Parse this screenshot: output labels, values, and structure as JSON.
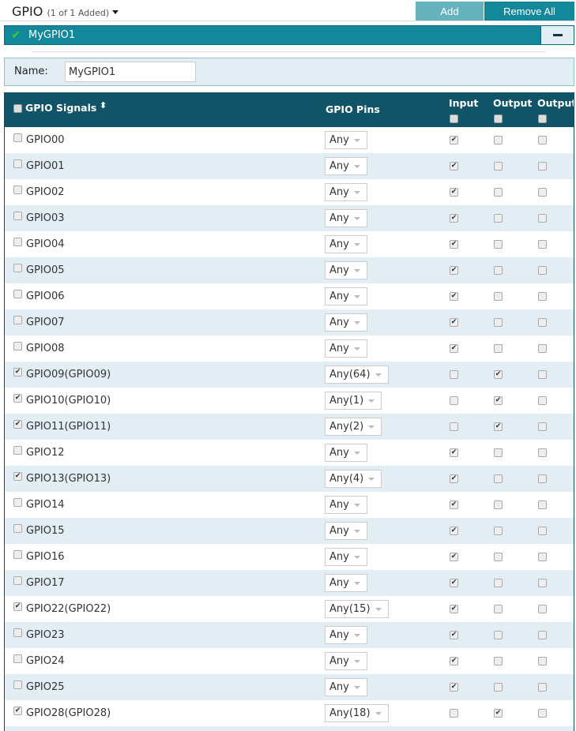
{
  "header": {
    "title": "GPIO",
    "count": "(1 of 1 Added)",
    "add_label": "Add",
    "remove_all_label": "Remove All"
  },
  "instance": {
    "name": "MyGPIO1",
    "collapse_icon": "minus-icon",
    "status_icon": "check-icon",
    "status_color": "#33cc33"
  },
  "name_field": {
    "label": "Name:",
    "value": "MyGPIO1"
  },
  "table": {
    "columns": {
      "signals": "GPIO Signals",
      "pins": "GPIO Pins",
      "input": "Input",
      "output1": "Output",
      "output2": "Output"
    },
    "rows": [
      {
        "signal": "GPIO00",
        "selected": false,
        "pin": "Any",
        "input": true,
        "output1": false,
        "output2": false
      },
      {
        "signal": "GPIO01",
        "selected": false,
        "pin": "Any",
        "input": true,
        "output1": false,
        "output2": false
      },
      {
        "signal": "GPIO02",
        "selected": false,
        "pin": "Any",
        "input": true,
        "output1": false,
        "output2": false
      },
      {
        "signal": "GPIO03",
        "selected": false,
        "pin": "Any",
        "input": true,
        "output1": false,
        "output2": false
      },
      {
        "signal": "GPIO04",
        "selected": false,
        "pin": "Any",
        "input": true,
        "output1": false,
        "output2": false
      },
      {
        "signal": "GPIO05",
        "selected": false,
        "pin": "Any",
        "input": true,
        "output1": false,
        "output2": false
      },
      {
        "signal": "GPIO06",
        "selected": false,
        "pin": "Any",
        "input": true,
        "output1": false,
        "output2": false
      },
      {
        "signal": "GPIO07",
        "selected": false,
        "pin": "Any",
        "input": true,
        "output1": false,
        "output2": false
      },
      {
        "signal": "GPIO08",
        "selected": false,
        "pin": "Any",
        "input": true,
        "output1": false,
        "output2": false
      },
      {
        "signal": "GPIO09(GPIO09)",
        "selected": true,
        "pin": "Any(64)",
        "input": false,
        "output1": true,
        "output2": false
      },
      {
        "signal": "GPIO10(GPIO10)",
        "selected": true,
        "pin": "Any(1)",
        "input": false,
        "output1": true,
        "output2": false
      },
      {
        "signal": "GPIO11(GPIO11)",
        "selected": true,
        "pin": "Any(2)",
        "input": false,
        "output1": true,
        "output2": false
      },
      {
        "signal": "GPIO12",
        "selected": false,
        "pin": "Any",
        "input": true,
        "output1": false,
        "output2": false
      },
      {
        "signal": "GPIO13(GPIO13)",
        "selected": true,
        "pin": "Any(4)",
        "input": true,
        "output1": false,
        "output2": false
      },
      {
        "signal": "GPIO14",
        "selected": false,
        "pin": "Any",
        "input": true,
        "output1": false,
        "output2": false
      },
      {
        "signal": "GPIO15",
        "selected": false,
        "pin": "Any",
        "input": true,
        "output1": false,
        "output2": false
      },
      {
        "signal": "GPIO16",
        "selected": false,
        "pin": "Any",
        "input": true,
        "output1": false,
        "output2": false
      },
      {
        "signal": "GPIO17",
        "selected": false,
        "pin": "Any",
        "input": true,
        "output1": false,
        "output2": false
      },
      {
        "signal": "GPIO22(GPIO22)",
        "selected": true,
        "pin": "Any(15)",
        "input": true,
        "output1": false,
        "output2": false
      },
      {
        "signal": "GPIO23",
        "selected": false,
        "pin": "Any",
        "input": true,
        "output1": false,
        "output2": false
      },
      {
        "signal": "GPIO24",
        "selected": false,
        "pin": "Any",
        "input": true,
        "output1": false,
        "output2": false
      },
      {
        "signal": "GPIO25",
        "selected": false,
        "pin": "Any",
        "input": true,
        "output1": false,
        "output2": false
      },
      {
        "signal": "GPIO28(GPIO28)",
        "selected": true,
        "pin": "Any(18)",
        "input": false,
        "output1": true,
        "output2": false
      }
    ]
  }
}
